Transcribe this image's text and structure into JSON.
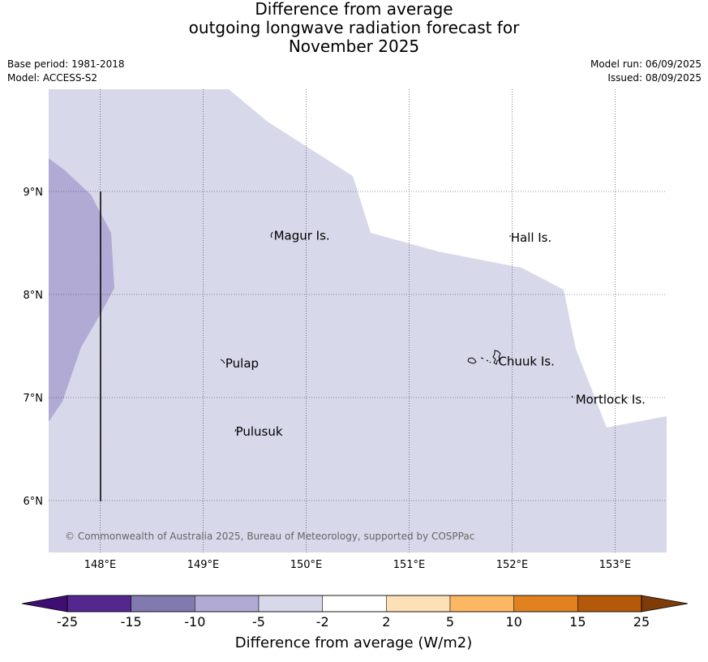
{
  "title": {
    "line1": "Difference from average",
    "line2": "outgoing longwave radiation forecast for",
    "line3": "November 2025"
  },
  "meta": {
    "base_period": "Base period: 1981-2018",
    "model": "Model: ACCESS-S2",
    "model_run": "Model run: 06/09/2025",
    "issued": "Issued: 08/09/2025"
  },
  "map": {
    "lon_labels": [
      "148°E",
      "149°E",
      "150°E",
      "151°E",
      "152°E",
      "153°E"
    ],
    "lat_labels": [
      "9°N",
      "8°N",
      "7°N",
      "6°N"
    ],
    "places": [
      {
        "name": "Magur Is.",
        "lon": 149.67,
        "lat": 8.57
      },
      {
        "name": "Hall Is.",
        "lon": 151.97,
        "lat": 8.55
      },
      {
        "name": "Pulap",
        "lon": 149.2,
        "lat": 7.33
      },
      {
        "name": "Chuuk Is.",
        "lon": 151.85,
        "lat": 7.35
      },
      {
        "name": "Mortlock Is.",
        "lon": 152.6,
        "lat": 6.98
      },
      {
        "name": "Pulusuk",
        "lon": 149.3,
        "lat": 6.67
      }
    ],
    "copyright": "© Commonwealth of Australia 2025, Bureau of Meteorology, supported by COSPPac",
    "colors": {
      "band_minus5_minus2": "#d7d8ea",
      "band_minus10_minus5": "#b1aad4"
    }
  },
  "colorbar": {
    "tick_labels": [
      "-25",
      "-15",
      "-10",
      "-5",
      "-2",
      "2",
      "5",
      "10",
      "15",
      "25"
    ],
    "colors": [
      "#3f0e72",
      "#54278f",
      "#807aae",
      "#b1aad4",
      "#d7d8ea",
      "#ffffff",
      "#fde0b6",
      "#fdb762",
      "#e1811f",
      "#b35909",
      "#7f3b08"
    ],
    "label": "Difference from average (W/m2)"
  }
}
